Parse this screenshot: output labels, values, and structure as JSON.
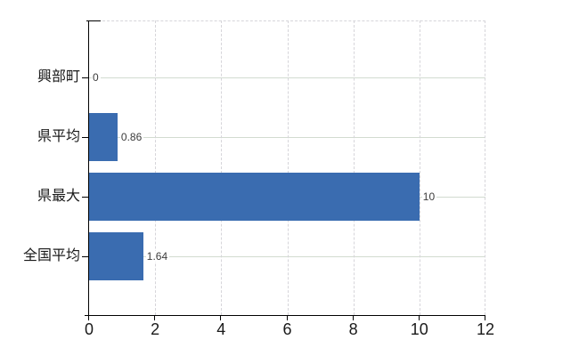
{
  "chart": {
    "bar_color": "#3a6cb0",
    "grid_color_horizontal": "#d2dbd0",
    "grid_color_vertical": "#d6d5da",
    "axis_color": "#000000",
    "value_label_color": "#3c3c3c",
    "tick_label_color": "#1a1a1a",
    "background_color": "#ffffff"
  },
  "chart_data": {
    "type": "bar",
    "orientation": "horizontal",
    "title": "",
    "xlabel": "",
    "ylabel": "",
    "categories": [
      "興部町",
      "県平均",
      "県最大",
      "全国平均"
    ],
    "values": [
      0,
      0.86,
      10,
      1.64
    ],
    "value_labels": [
      "0",
      "0.86",
      "10",
      "1.64"
    ],
    "xlim": [
      0,
      12
    ],
    "xticks": [
      0,
      2,
      4,
      6,
      8,
      10,
      12
    ],
    "xtick_labels": [
      "0",
      "2",
      "4",
      "6",
      "8",
      "10",
      "12"
    ],
    "grid": true,
    "legend": false
  }
}
